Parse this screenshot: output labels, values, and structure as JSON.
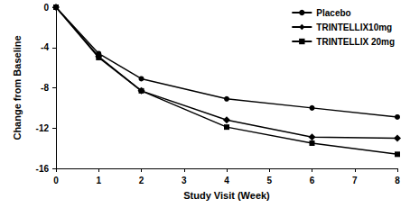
{
  "chart_data": {
    "type": "line",
    "x_label": "Study Visit (Week)",
    "y_label": "Change from Baseline",
    "x": [
      0,
      1,
      2,
      4,
      6,
      8
    ],
    "series": [
      {
        "name": "Placebo",
        "color": "#000000",
        "marker": "circle",
        "line_style": "solid",
        "values": [
          0,
          -4.6,
          -7.1,
          -9.1,
          -10.0,
          -10.9
        ]
      },
      {
        "name": "TRINTELLIX10mg",
        "color": "#000000",
        "marker": "diamond",
        "line_style": "solid",
        "values": [
          0,
          -4.9,
          -8.3,
          -11.2,
          -12.9,
          -13.0
        ]
      },
      {
        "name": "TRINTELLIX 20mg",
        "color": "#000000",
        "marker": "square",
        "line_style": "solid",
        "values": [
          0,
          -5.0,
          -8.3,
          -11.9,
          -13.5,
          -14.6
        ]
      }
    ],
    "xlim": [
      0,
      8
    ],
    "xticks": [
      0,
      1,
      2,
      3,
      4,
      5,
      6,
      7,
      8
    ],
    "ylim": [
      -16,
      0
    ],
    "yticks": [
      -16,
      -12,
      -8,
      -4,
      0
    ],
    "grid": false,
    "legend": "upper right"
  }
}
